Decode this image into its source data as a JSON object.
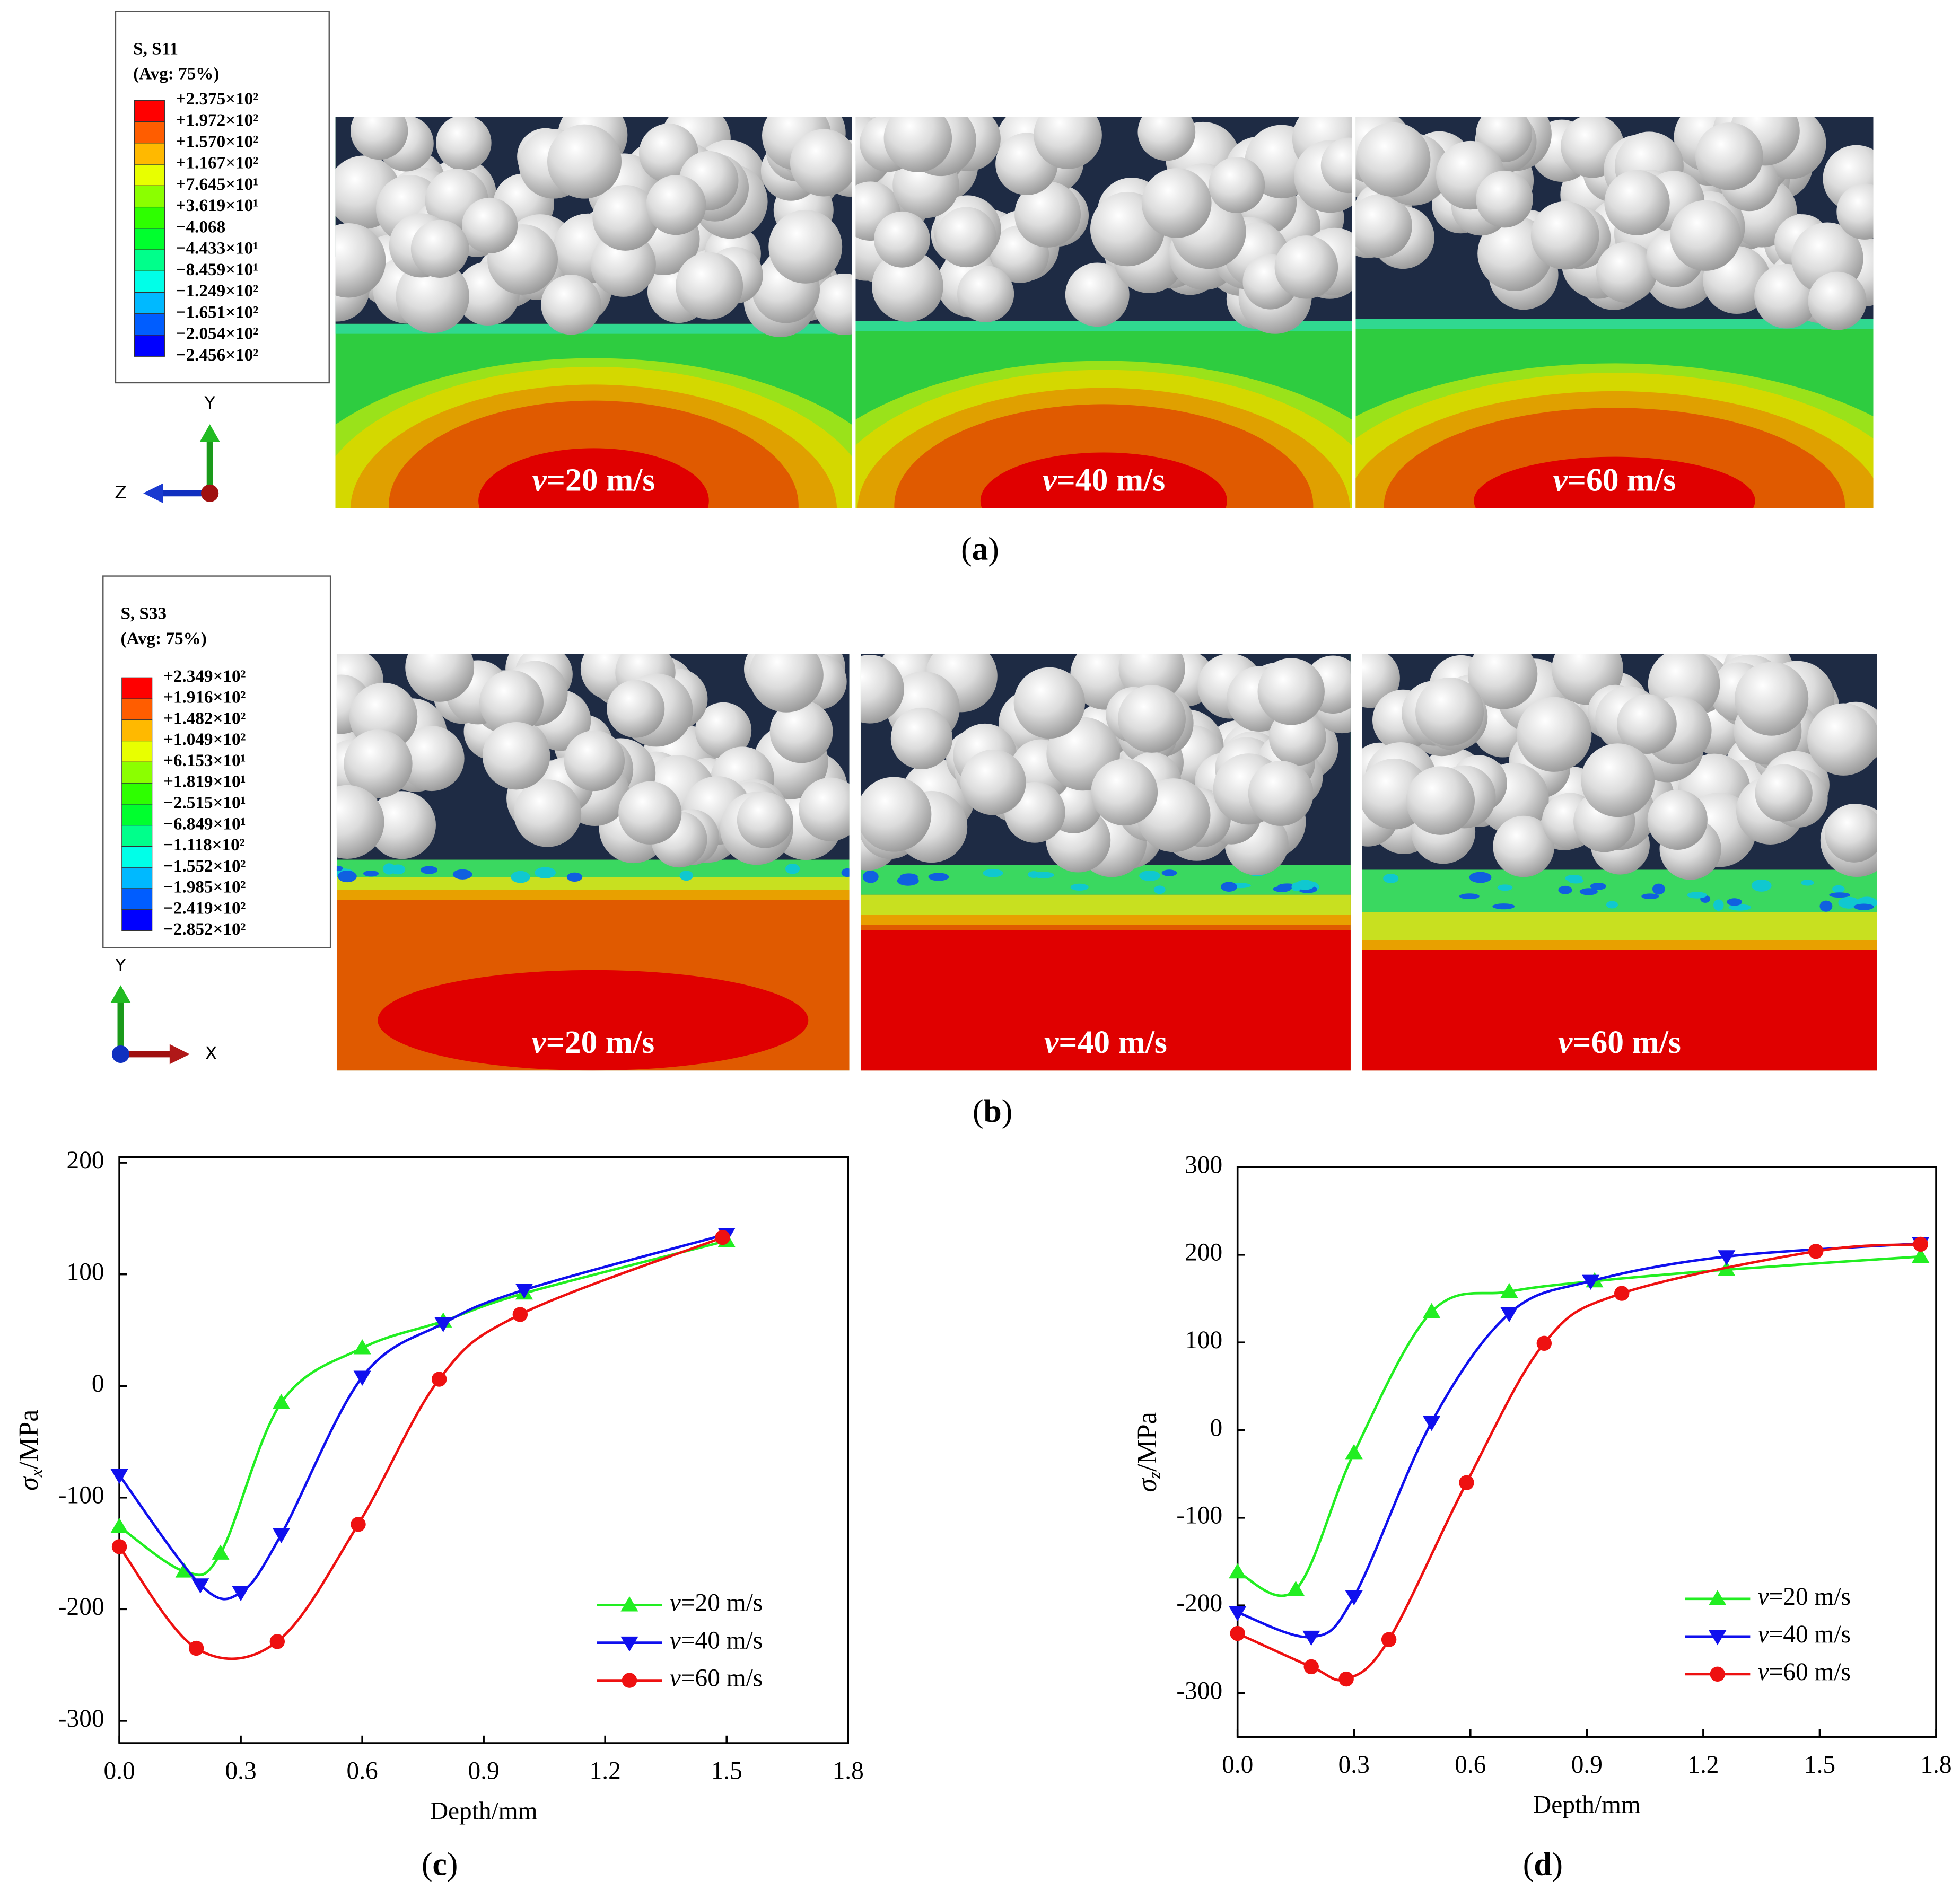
{
  "figure_panels": [
    {
      "caption": "(a)",
      "legend": {
        "title": "S, S11",
        "subtitle": "(Avg: 75%)",
        "labels": [
          "+2.375×10²",
          "+1.972×10²",
          "+1.570×10²",
          "+1.167×10²",
          "+7.645×10¹",
          "+3.619×10¹",
          "−4.068",
          "−4.433×10¹",
          "−8.459×10¹",
          "−1.249×10²",
          "−1.651×10²",
          "−2.054×10²",
          "−2.456×10²"
        ],
        "colors": [
          "#ff0000",
          "#ff5d00",
          "#ffb900",
          "#e8ff00",
          "#8bff00",
          "#2eff00",
          "#00ff2e",
          "#00ff8b",
          "#00ffe8",
          "#00b9ff",
          "#005dff",
          "#0000ff"
        ]
      },
      "axes": [
        "Y",
        "Z"
      ],
      "labels": [
        "v=20 m/s",
        "v=40 m/s",
        "v=60 m/s"
      ]
    },
    {
      "caption": "(b)",
      "legend": {
        "title": "S, S33",
        "subtitle": "(Avg: 75%)",
        "labels": [
          "+2.349×10²",
          "+1.916×10²",
          "+1.482×10²",
          "+1.049×10²",
          "+6.153×10¹",
          "+1.819×10¹",
          "−2.515×10¹",
          "−6.849×10¹",
          "−1.118×10²",
          "−1.552×10²",
          "−1.985×10²",
          "−2.419×10²",
          "−2.852×10²"
        ],
        "colors": [
          "#ff0000",
          "#ff5d00",
          "#ffb900",
          "#e8ff00",
          "#8bff00",
          "#2eff00",
          "#00ff2e",
          "#00ff8b",
          "#00ffe8",
          "#00b9ff",
          "#005dff",
          "#0000ff"
        ]
      },
      "axes": [
        "Y",
        "X"
      ],
      "labels": [
        "v=20 m/s",
        "v=40 m/s",
        "v=60 m/s"
      ]
    }
  ],
  "chart_data": [
    {
      "type": "line",
      "caption": "(c)",
      "x_label": "Depth/mm",
      "y_label": "σx/MPa",
      "legend": "lower right",
      "xlim": [
        0,
        1.8
      ],
      "xticks": [
        {
          "value": 0,
          "label": "0.0"
        },
        0.3,
        0.6,
        0.9,
        1.2,
        1.5,
        1.8
      ],
      "ylim": [
        -320,
        205
      ],
      "yticks": [
        -300,
        -200,
        -100,
        0,
        100,
        200
      ],
      "series": [
        {
          "name": "v=20 m/s",
          "color": "#22ee22",
          "marker": "triangle-up",
          "x": [
            0,
            0.16,
            0.25,
            0.4,
            0.6,
            0.8,
            1.0,
            1.5
          ],
          "values": [
            -126,
            -166,
            -150,
            -15,
            34,
            58,
            83,
            130
          ]
        },
        {
          "name": "v=40 m/s",
          "color": "#1010ee",
          "marker": "triangle-down",
          "x": [
            0,
            0.2,
            0.3,
            0.4,
            0.6,
            0.8,
            1.0,
            1.5
          ],
          "values": [
            -80,
            -178,
            -185,
            -133,
            8,
            56,
            86,
            136
          ]
        },
        {
          "name": "v=60 m/s",
          "color": "#ee1111",
          "marker": "circle",
          "x": [
            0,
            0.19,
            0.39,
            0.59,
            0.79,
            0.99,
            1.49
          ],
          "values": [
            -144,
            -235,
            -229,
            -124,
            6,
            64,
            133
          ]
        }
      ]
    },
    {
      "type": "line",
      "caption": "(d)",
      "x_label": "Depth/mm",
      "y_label": "σz/MPa",
      "legend": "lower right",
      "xlim": [
        0,
        1.8
      ],
      "xticks": [
        {
          "value": 0,
          "label": "0.0"
        },
        0.3,
        0.6,
        0.9,
        1.2,
        1.5,
        1.8
      ],
      "ylim": [
        -350,
        300
      ],
      "yticks": [
        -300,
        -200,
        -100,
        0,
        100,
        200,
        300
      ],
      "series": [
        {
          "name": "v=20 m/s",
          "color": "#22ee22",
          "marker": "triangle-up",
          "x": [
            0,
            0.15,
            0.3,
            0.5,
            0.7,
            0.92,
            1.26,
            1.76
          ],
          "values": [
            -162,
            -182,
            -26,
            135,
            158,
            170,
            183,
            198
          ]
        },
        {
          "name": "v=40 m/s",
          "color": "#1010ee",
          "marker": "triangle-down",
          "x": [
            0,
            0.19,
            0.3,
            0.5,
            0.7,
            0.91,
            1.26,
            1.76
          ],
          "values": [
            -208,
            -236,
            -190,
            9,
            133,
            170,
            198,
            213
          ]
        },
        {
          "name": "v=60 m/s",
          "color": "#ee1111",
          "marker": "circle",
          "x": [
            0,
            0.19,
            0.28,
            0.39,
            0.59,
            0.79,
            0.99,
            1.49,
            1.76
          ],
          "values": [
            -232,
            -270,
            -284,
            -239,
            -60,
            99,
            156,
            204,
            212
          ]
        }
      ]
    }
  ]
}
